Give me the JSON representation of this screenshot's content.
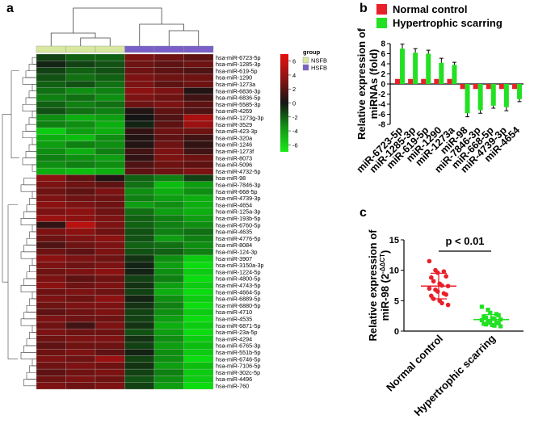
{
  "panels": {
    "a": "a",
    "b": "b",
    "c": "c"
  },
  "chart_data": [
    {
      "type": "heatmap",
      "panel": "a",
      "groups_title": "group",
      "groups": [
        {
          "name": "NSFB",
          "color": "#d8e8a0"
        },
        {
          "name": "HSFB",
          "color": "#7a5fc8"
        }
      ],
      "sample_groups": [
        "NSFB",
        "NSFB",
        "NSFB",
        "HSFB",
        "HSFB",
        "HSFB"
      ],
      "colorbar_ticks": [
        6,
        4,
        2,
        0,
        -2,
        -4,
        -6
      ],
      "value_range": [
        -7,
        7
      ],
      "rows": [
        {
          "label": "hsa-miR-6723-5p",
          "values": [
            -1.5,
            -2.5,
            -2.5,
            3.5,
            3.0,
            2.5
          ]
        },
        {
          "label": "hsa-miR-1285-3p",
          "values": [
            -0.5,
            -1.5,
            -2.0,
            3.0,
            2.5,
            3.0
          ]
        },
        {
          "label": "hsa-miR-619-5p",
          "values": [
            -1.5,
            -2.5,
            -2.0,
            3.0,
            2.5,
            2.0
          ]
        },
        {
          "label": "hsa-miR-1290",
          "values": [
            -2.0,
            -3.0,
            -2.5,
            3.5,
            3.0,
            3.0
          ]
        },
        {
          "label": "hsa-miR-1273a",
          "values": [
            -2.5,
            -2.0,
            -3.0,
            3.5,
            2.5,
            3.0
          ]
        },
        {
          "label": "hsa-miR-6836-3p",
          "values": [
            -3.0,
            -4.0,
            -3.5,
            4.0,
            3.5,
            0.5
          ]
        },
        {
          "label": "hsa-miR-6836-5p",
          "values": [
            -3.5,
            -3.0,
            -4.0,
            3.5,
            3.0,
            1.5
          ]
        },
        {
          "label": "hsa-miR-5585-3p",
          "values": [
            -2.5,
            -3.5,
            -3.0,
            3.0,
            3.5,
            2.5
          ]
        },
        {
          "label": "hsa-miR-4269",
          "values": [
            -2.0,
            -3.0,
            -3.5,
            0.5,
            2.5,
            2.0
          ]
        },
        {
          "label": "hsa-miR-1273g-3p",
          "values": [
            -4.0,
            -5.0,
            -4.5,
            0.0,
            2.0,
            5.0
          ]
        },
        {
          "label": "hsa-miR-3529",
          "values": [
            -3.5,
            -4.0,
            -5.0,
            -0.5,
            2.5,
            4.5
          ]
        },
        {
          "label": "hsa-miR-423-3p",
          "values": [
            -6.0,
            -4.5,
            -5.0,
            1.0,
            3.0,
            3.0
          ]
        },
        {
          "label": "hsa-miR-320a",
          "values": [
            -5.0,
            -5.5,
            -4.0,
            0.5,
            2.5,
            1.5
          ]
        },
        {
          "label": "hsa-miR-1246",
          "values": [
            -4.5,
            -3.5,
            -4.0,
            0.5,
            3.0,
            1.0
          ]
        },
        {
          "label": "hsa-miR-1273f",
          "values": [
            -4.0,
            -5.0,
            -3.5,
            1.5,
            3.5,
            1.5
          ]
        },
        {
          "label": "hsa-miR-8073",
          "values": [
            -3.5,
            -4.0,
            -4.5,
            1.0,
            3.5,
            3.0
          ]
        },
        {
          "label": "hsa-miR-5096",
          "values": [
            -4.0,
            -3.5,
            -4.0,
            2.0,
            3.0,
            2.5
          ]
        },
        {
          "label": "hsa-miR-4732-5p",
          "values": [
            -5.0,
            -5.5,
            -5.0,
            2.5,
            3.0,
            3.5
          ]
        },
        {
          "label": "hsa-miR-98",
          "values": [
            4.0,
            2.5,
            0.5,
            -2.5,
            -3.5,
            -1.5
          ]
        },
        {
          "label": "hsa-miR-7846-3p",
          "values": [
            3.5,
            3.0,
            2.5,
            -3.0,
            -5.5,
            -4.5
          ]
        },
        {
          "label": "hsa-miR-668-5p",
          "values": [
            3.0,
            2.5,
            3.5,
            -4.0,
            -5.0,
            -4.0
          ]
        },
        {
          "label": "hsa-miR-4739-3p",
          "values": [
            3.5,
            3.0,
            3.0,
            -3.5,
            -4.5,
            -5.0
          ]
        },
        {
          "label": "hsa-miR-4654",
          "values": [
            4.0,
            3.5,
            3.0,
            -4.5,
            -4.0,
            -5.0
          ]
        },
        {
          "label": "hsa-miR-125a-3p",
          "values": [
            3.5,
            4.0,
            3.0,
            -3.0,
            -4.5,
            -5.0
          ]
        },
        {
          "label": "hsa-miR-193b-5p",
          "values": [
            4.5,
            4.0,
            3.5,
            -2.5,
            -3.5,
            -4.5
          ]
        },
        {
          "label": "hsa-miR-6760-5p",
          "values": [
            1.0,
            5.5,
            3.5,
            -2.5,
            -3.5,
            -4.0
          ]
        },
        {
          "label": "hsa-miR-4635",
          "values": [
            3.5,
            4.0,
            3.0,
            -2.0,
            -3.5,
            -3.0
          ]
        },
        {
          "label": "hsa-miR-4776-5p",
          "values": [
            3.0,
            3.5,
            4.0,
            -2.0,
            -4.5,
            -3.5
          ]
        },
        {
          "label": "hsa-miR-8084",
          "values": [
            2.0,
            3.0,
            3.5,
            -2.5,
            -3.0,
            -4.0
          ]
        },
        {
          "label": "hsa-miR-124-3p",
          "values": [
            3.0,
            2.5,
            3.5,
            -2.0,
            -2.5,
            -3.5
          ]
        },
        {
          "label": "hsa-miR-3907",
          "values": [
            4.0,
            3.5,
            3.0,
            -1.0,
            -4.0,
            -6.0
          ]
        },
        {
          "label": "hsa-miR-3150a-3p",
          "values": [
            3.5,
            3.0,
            3.5,
            -0.5,
            -4.5,
            -6.5
          ]
        },
        {
          "label": "hsa-miR-1224-5p",
          "values": [
            3.0,
            3.5,
            4.0,
            -0.5,
            -4.0,
            -6.0
          ]
        },
        {
          "label": "hsa-miR-4800-5p",
          "values": [
            3.5,
            2.5,
            3.0,
            -1.5,
            -3.5,
            -6.5
          ]
        },
        {
          "label": "hsa-miR-4743-5p",
          "values": [
            4.0,
            3.0,
            3.5,
            -1.0,
            -4.5,
            -6.0
          ]
        },
        {
          "label": "hsa-miR-4664-5p",
          "values": [
            3.0,
            3.5,
            3.0,
            -1.5,
            -5.0,
            -6.5
          ]
        },
        {
          "label": "hsa-miR-6889-5p",
          "values": [
            3.5,
            3.0,
            4.0,
            -0.5,
            -4.0,
            -6.0
          ]
        },
        {
          "label": "hsa-miR-6880-5p",
          "values": [
            3.0,
            3.5,
            3.5,
            -1.0,
            -3.5,
            -6.5
          ]
        },
        {
          "label": "hsa-miR-4710",
          "values": [
            2.5,
            3.0,
            3.5,
            -1.5,
            -4.0,
            -6.0
          ]
        },
        {
          "label": "hsa-miR-4535",
          "values": [
            3.5,
            3.0,
            3.0,
            -1.5,
            -4.5,
            -6.5
          ]
        },
        {
          "label": "hsa-miR-6871-5p",
          "values": [
            3.0,
            1.5,
            3.5,
            -1.0,
            -5.0,
            -6.0
          ]
        },
        {
          "label": "hsa-miR-23a-5p",
          "values": [
            3.5,
            3.0,
            3.0,
            -2.0,
            -4.5,
            -6.5
          ]
        },
        {
          "label": "hsa-miR-4294",
          "values": [
            3.0,
            3.5,
            3.5,
            -1.0,
            -4.0,
            -6.0
          ]
        },
        {
          "label": "hsa-miR-6765-3p",
          "values": [
            2.5,
            3.0,
            3.0,
            -1.5,
            -4.5,
            -5.5
          ]
        },
        {
          "label": "hsa-miR-551b-5p",
          "values": [
            3.0,
            3.5,
            2.5,
            -0.5,
            -4.0,
            -6.0
          ]
        },
        {
          "label": "hsa-miR-6746-5p",
          "values": [
            3.5,
            3.0,
            4.5,
            -1.5,
            -4.0,
            -6.5
          ]
        },
        {
          "label": "hsa-miR-7106-5p",
          "values": [
            3.0,
            3.5,
            3.0,
            -1.0,
            -4.5,
            -5.5
          ]
        },
        {
          "label": "hsa-miR-302c-5p",
          "values": [
            2.5,
            3.0,
            3.5,
            -1.5,
            -3.5,
            -6.0
          ]
        },
        {
          "label": "hsa-miR-4496",
          "values": [
            3.0,
            3.5,
            3.0,
            -2.0,
            -4.0,
            -6.0
          ]
        },
        {
          "label": "hsa-miR-760",
          "values": [
            3.5,
            3.0,
            3.5,
            -1.5,
            -4.5,
            -6.5
          ]
        }
      ]
    },
    {
      "type": "bar",
      "panel": "b",
      "ylabel": "Relative expression of miRNAs (fold)",
      "ylim": [
        -8,
        8
      ],
      "yticks": [
        8,
        6,
        4,
        2,
        0,
        -2,
        -4,
        -6,
        -8
      ],
      "categories": [
        "miR-6723-5p",
        "miR-1285-3p",
        "miR-619-5p",
        "miR-1290",
        "miR-1273a",
        "miR-98",
        "miR-7846-3p",
        "miR-668-5p",
        "miR-4739-3p",
        "miR-4654"
      ],
      "series": [
        {
          "name": "Normal control",
          "color": "#e8202a",
          "values": [
            1,
            1,
            1,
            1,
            1,
            -1,
            -1,
            -1,
            -1,
            -1
          ],
          "errors": [
            0,
            0,
            0,
            0,
            0,
            0,
            0,
            0,
            0,
            0
          ]
        },
        {
          "name": "Hypertrophic scarring",
          "color": "#22e022",
          "values": [
            7.0,
            6.2,
            6.0,
            4.2,
            3.8,
            -5.8,
            -5.2,
            -4.3,
            -4.6,
            -3.0
          ],
          "errors": [
            0.9,
            0.8,
            0.7,
            0.9,
            0.5,
            0.7,
            0.6,
            0.5,
            0.7,
            0.5
          ]
        }
      ]
    },
    {
      "type": "scatter",
      "panel": "c",
      "ylabel_line1": "Relative expression of",
      "ylabel_prefix": "miR-98 (2",
      "ylabel_sup": "-ΔΔCT",
      "ylabel_suffix": ")",
      "ylim": [
        0,
        15
      ],
      "yticks": [
        15,
        10,
        5,
        0
      ],
      "categories": [
        "Normal control",
        "Hypertrophic scarring"
      ],
      "annotation": "p < 0.01",
      "series": [
        {
          "name": "Normal control",
          "color": "#e8202a",
          "marker": "circle",
          "mean": 7.4,
          "sd": 2.1,
          "values": [
            11.5,
            10.0,
            9.6,
            9.8,
            9.0,
            8.8,
            8.2,
            7.8,
            7.5,
            7.4,
            7.0,
            6.8,
            6.5,
            6.2,
            6.0,
            5.8,
            5.3,
            5.0,
            4.6,
            4.3
          ]
        },
        {
          "name": "Hypertrophic scarring",
          "color": "#22e022",
          "marker": "square",
          "mean": 1.9,
          "sd": 0.8,
          "values": [
            4.0,
            3.5,
            3.0,
            2.8,
            2.6,
            2.4,
            2.2,
            2.1,
            2.0,
            1.9,
            1.8,
            1.6,
            1.5,
            1.4,
            1.3,
            1.2,
            1.1,
            1.0,
            0.9,
            0.8
          ]
        }
      ]
    }
  ]
}
